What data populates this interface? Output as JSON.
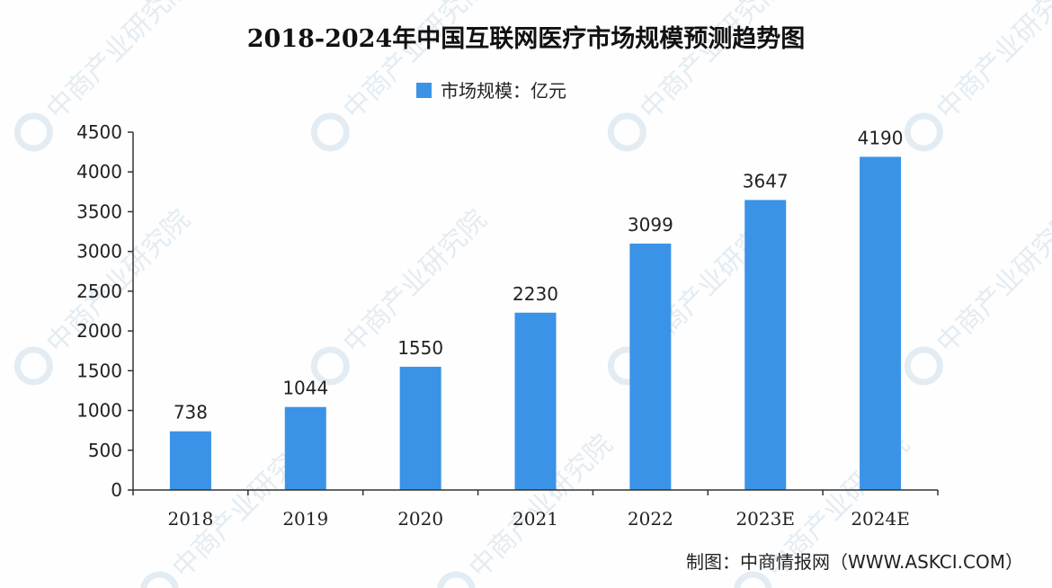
{
  "chart_data": {
    "type": "bar",
    "title": "2018-2024年中国互联网医疗市场规模预测趋势图",
    "legend": {
      "label": "市场规模：亿元",
      "placement": "top-center"
    },
    "categories": [
      "2018",
      "2019",
      "2020",
      "2021",
      "2022",
      "2023E",
      "2024E"
    ],
    "values": [
      738,
      1044,
      1550,
      2230,
      3099,
      3647,
      4190
    ],
    "data_labels": [
      "738",
      "1044",
      "1550",
      "2230",
      "3099",
      "3647",
      "4190"
    ],
    "y_ticks": [
      "0",
      "500",
      "1000",
      "1500",
      "2000",
      "2500",
      "3000",
      "3500",
      "4000",
      "4500"
    ],
    "ylim": [
      0,
      4500
    ],
    "grid": false,
    "bar_color": "#3a93e6"
  },
  "footer": {
    "source": "制图：中商情报网（WWW.ASKCI.COM）"
  },
  "watermark": {
    "text": "中商产业研究院",
    "color": "#e3ecf3"
  }
}
